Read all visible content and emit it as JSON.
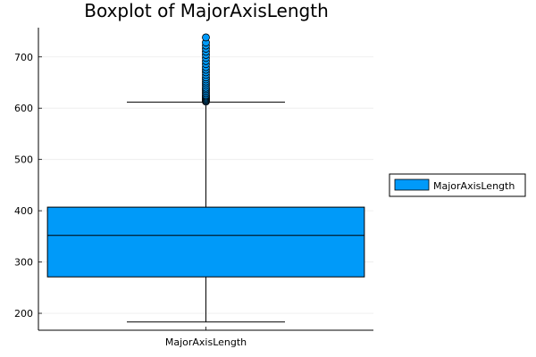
{
  "chart_data": {
    "type": "box",
    "title": "Boxplot of MajorAxisLength",
    "xlabel": "",
    "ylabel": "",
    "categories": [
      "MajorAxisLength"
    ],
    "ylim": [
      167,
      757
    ],
    "yticks": [
      200,
      300,
      400,
      500,
      600,
      700
    ],
    "grid": true,
    "legend": {
      "entries": [
        "MajorAxisLength"
      ],
      "placement": "right"
    },
    "colors": {
      "box": "#009af9",
      "line": "#000000",
      "grid": "#ececec"
    },
    "series": [
      {
        "name": "MajorAxisLength",
        "category": "MajorAxisLength",
        "whisker_low": 183,
        "q1": 271,
        "median": 352,
        "q3": 407,
        "whisker_high": 612,
        "outliers": [
          613,
          615,
          617,
          619,
          621,
          623,
          625,
          628,
          631,
          634,
          637,
          640,
          644,
          648,
          652,
          656,
          660,
          665,
          670,
          675,
          680,
          686,
          692,
          698,
          704,
          710,
          716,
          722,
          728,
          738
        ]
      }
    ]
  }
}
